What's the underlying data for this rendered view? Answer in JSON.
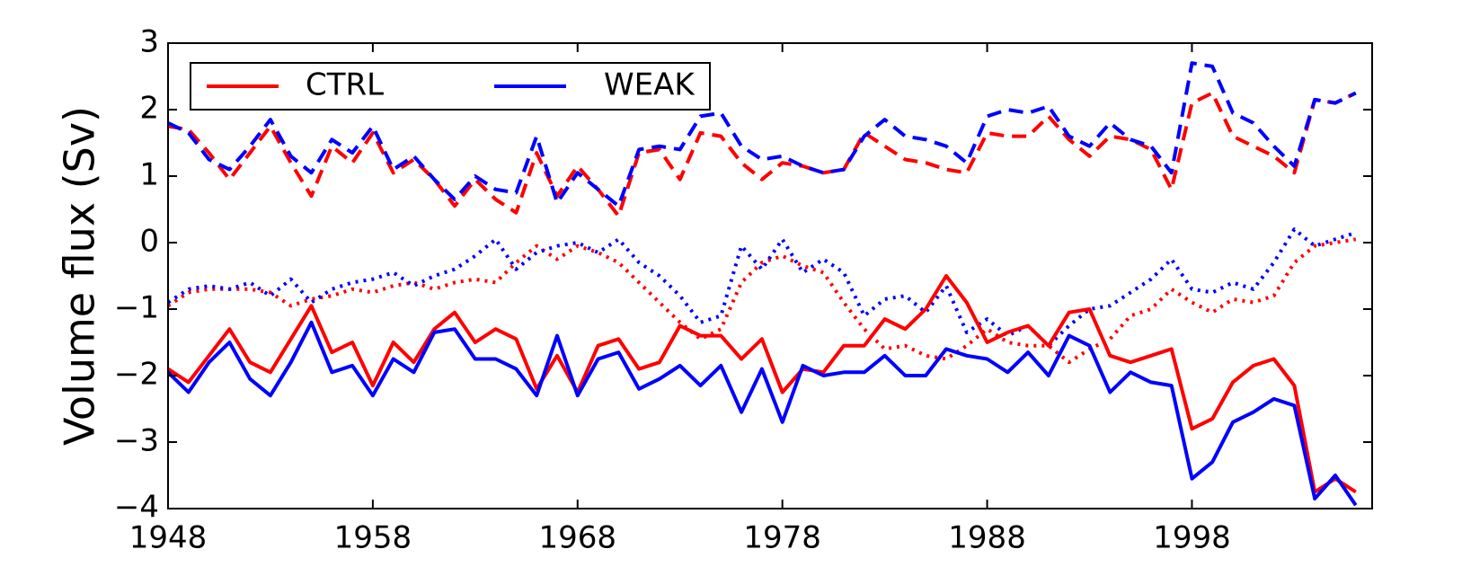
{
  "chart_data": {
    "type": "line",
    "y_label": "Volume flux (Sv)",
    "x": [
      1948,
      1949,
      1950,
      1951,
      1952,
      1953,
      1954,
      1955,
      1956,
      1957,
      1958,
      1959,
      1960,
      1961,
      1962,
      1963,
      1964,
      1965,
      1966,
      1967,
      1968,
      1969,
      1970,
      1971,
      1972,
      1973,
      1974,
      1975,
      1976,
      1977,
      1978,
      1979,
      1980,
      1981,
      1982,
      1983,
      1984,
      1985,
      1986,
      1987,
      1988,
      1989,
      1990,
      1991,
      1992,
      1993,
      1994,
      1995,
      1996,
      1997,
      1998,
      1999,
      2000,
      2001,
      2002,
      2003,
      2004,
      2005,
      2006
    ],
    "xlim": [
      1948,
      2006.8
    ],
    "xticks": [
      1948,
      1958,
      1968,
      1978,
      1988,
      1998
    ],
    "ylim": [
      -4,
      3
    ],
    "yticks": [
      {
        "value": -4,
        "label": "−4"
      },
      {
        "value": -3,
        "label": "−3"
      },
      {
        "value": -2,
        "label": "−2"
      },
      {
        "value": -1,
        "label": "−1"
      },
      0,
      1,
      2,
      3
    ],
    "grid": false,
    "legend": {
      "loc": "upper left",
      "entries": [
        {
          "name": "CTRL",
          "color": "#ff0000"
        },
        {
          "name": "WEAK",
          "color": "#0000ff"
        }
      ]
    },
    "series": [
      {
        "color": "#ff0000",
        "linestyle": "dotted",
        "values": [
          -0.95,
          -0.75,
          -0.7,
          -0.7,
          -0.7,
          -0.75,
          -0.95,
          -0.85,
          -0.8,
          -0.7,
          -0.75,
          -0.65,
          -0.6,
          -0.7,
          -0.6,
          -0.55,
          -0.6,
          -0.3,
          -0.05,
          -0.25,
          -0.05,
          -0.15,
          -0.3,
          -0.6,
          -0.9,
          -1.2,
          -1.45,
          -1.3,
          -0.6,
          -0.3,
          -0.2,
          -0.35,
          -0.45,
          -0.9,
          -1.3,
          -1.6,
          -1.55,
          -1.7,
          -1.75,
          -1.55,
          -1.3,
          -1.5,
          -1.55,
          -1.55,
          -1.8,
          -1.6,
          -1.45,
          -1.1,
          -1.0,
          -0.7,
          -0.9,
          -1.05,
          -0.85,
          -0.9,
          -0.8,
          -0.3,
          -0.05,
          0,
          0.05
        ]
      },
      {
        "color": "#0000ff",
        "linestyle": "dotted",
        "values": [
          -0.9,
          -0.7,
          -0.65,
          -0.7,
          -0.6,
          -0.8,
          -0.55,
          -0.9,
          -0.7,
          -0.6,
          -0.55,
          -0.45,
          -0.65,
          -0.5,
          -0.4,
          -0.2,
          0.05,
          -0.4,
          -0.15,
          -0.05,
          0,
          -0.15,
          0.05,
          -0.3,
          -0.5,
          -0.8,
          -1.2,
          -1.1,
          -0.05,
          -0.4,
          0.05,
          -0.45,
          -0.25,
          -0.45,
          -1.1,
          -0.85,
          -0.8,
          -1.05,
          -0.65,
          -1.35,
          -1.15,
          -1.4,
          -1.25,
          -1.55,
          -1.25,
          -1.0,
          -0.95,
          -0.75,
          -0.55,
          -0.25,
          -0.7,
          -0.75,
          -0.6,
          -0.7,
          -0.3,
          0.2,
          -0.05,
          0.05,
          0.15
        ]
      },
      {
        "color": "#ff0000",
        "linestyle": "dashed",
        "values": [
          1.75,
          1.7,
          1.35,
          0.95,
          1.35,
          1.75,
          1.2,
          0.7,
          1.45,
          1.2,
          1.65,
          1.05,
          1.25,
          0.95,
          0.55,
          0.95,
          0.65,
          0.45,
          1.35,
          0.7,
          1.15,
          0.8,
          0.4,
          1.35,
          1.4,
          0.95,
          1.65,
          1.6,
          1.2,
          0.95,
          1.2,
          1.15,
          1.05,
          1.1,
          1.65,
          1.45,
          1.25,
          1.2,
          1.1,
          1.05,
          1.65,
          1.6,
          1.6,
          1.9,
          1.55,
          1.3,
          1.6,
          1.55,
          1.4,
          0.8,
          2.1,
          2.25,
          1.6,
          1.45,
          1.3,
          1.05,
          2.15,
          2.1,
          2.25
        ]
      },
      {
        "color": "#0000ff",
        "linestyle": "dashed",
        "values": [
          1.8,
          1.65,
          1.25,
          1.1,
          1.45,
          1.85,
          1.3,
          1.05,
          1.55,
          1.35,
          1.75,
          1.1,
          1.3,
          0.95,
          0.65,
          1.0,
          0.8,
          0.75,
          1.6,
          0.6,
          1.05,
          0.8,
          0.55,
          1.4,
          1.45,
          1.4,
          1.9,
          1.95,
          1.45,
          1.25,
          1.3,
          1.15,
          1.05,
          1.1,
          1.6,
          1.85,
          1.6,
          1.55,
          1.45,
          1.2,
          1.9,
          2.0,
          1.95,
          2.05,
          1.6,
          1.45,
          1.8,
          1.55,
          1.45,
          1.05,
          2.7,
          2.65,
          1.95,
          1.8,
          1.45,
          1.15,
          2.15,
          2.1,
          2.25
        ]
      },
      {
        "color": "#ff0000",
        "linestyle": "solid",
        "values": [
          -1.9,
          -2.1,
          -1.7,
          -1.3,
          -1.8,
          -1.95,
          -1.45,
          -0.95,
          -1.65,
          -1.5,
          -2.15,
          -1.5,
          -1.8,
          -1.3,
          -1.05,
          -1.5,
          -1.3,
          -1.45,
          -2.2,
          -1.7,
          -2.25,
          -1.55,
          -1.45,
          -1.9,
          -1.8,
          -1.25,
          -1.4,
          -1.4,
          -1.75,
          -1.45,
          -2.25,
          -1.9,
          -1.95,
          -1.55,
          -1.55,
          -1.15,
          -1.3,
          -1.0,
          -0.5,
          -0.9,
          -1.5,
          -1.35,
          -1.25,
          -1.55,
          -1.05,
          -1.0,
          -1.7,
          -1.8,
          -1.7,
          -1.6,
          -2.8,
          -2.65,
          -2.1,
          -1.85,
          -1.75,
          -2.15,
          -3.75,
          -3.55,
          -3.75
        ]
      },
      {
        "color": "#0000ff",
        "linestyle": "solid",
        "values": [
          -1.95,
          -2.25,
          -1.8,
          -1.5,
          -2.05,
          -2.3,
          -1.8,
          -1.2,
          -1.95,
          -1.85,
          -2.3,
          -1.75,
          -1.95,
          -1.35,
          -1.3,
          -1.75,
          -1.75,
          -1.9,
          -2.3,
          -1.4,
          -2.3,
          -1.75,
          -1.65,
          -2.2,
          -2.05,
          -1.85,
          -2.15,
          -1.85,
          -2.55,
          -1.9,
          -2.7,
          -1.85,
          -2.0,
          -1.95,
          -1.95,
          -1.7,
          -2.0,
          -2.0,
          -1.6,
          -1.7,
          -1.75,
          -1.95,
          -1.65,
          -2.0,
          -1.4,
          -1.55,
          -2.25,
          -1.95,
          -2.1,
          -2.15,
          -3.55,
          -3.3,
          -2.7,
          -2.55,
          -2.35,
          -2.45,
          -3.85,
          -3.5,
          -3.95
        ]
      }
    ]
  }
}
